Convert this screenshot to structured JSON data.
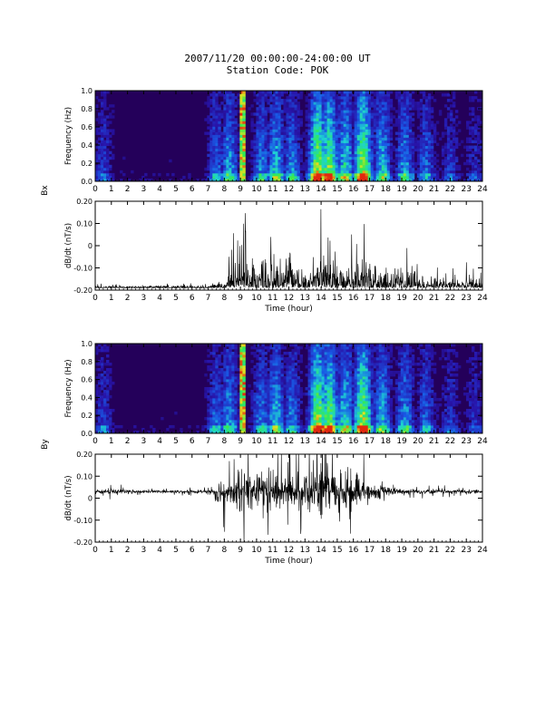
{
  "header": {
    "title": "2007/11/20 00:00:00-24:00:00 UT",
    "subtitle": "Station Code: POK"
  },
  "colors": {
    "spectrogram_low": "#24005a",
    "spectrogram_mid_blue": "#1a3cd6",
    "spectrogram_cyan": "#1fd6c8",
    "spectrogram_green": "#2ff04a",
    "spectrogram_yellow": "#e8e020",
    "spectrogram_red": "#e03010",
    "trace": "#000000"
  },
  "chart_data": [
    {
      "type": "heatmap",
      "component": "Bx",
      "ylabel": "Frequency (Hz)",
      "xlabel": "",
      "xlim": [
        0,
        24
      ],
      "ylim": [
        0.0,
        1.0
      ],
      "x_ticks": [
        "0",
        "1",
        "2",
        "3",
        "4",
        "5",
        "6",
        "7",
        "8",
        "9",
        "10",
        "11",
        "12",
        "13",
        "14",
        "15",
        "16",
        "17",
        "18",
        "19",
        "20",
        "21",
        "22",
        "23",
        "24"
      ],
      "y_ticks": [
        "0.0",
        "0.2",
        "0.4",
        "0.6",
        "0.8",
        "1.0"
      ],
      "activity": [
        {
          "hour": 0.5,
          "level": 0.35
        },
        {
          "hour": 7.5,
          "level": 0.45
        },
        {
          "hour": 8.3,
          "level": 0.55
        },
        {
          "hour": 9.1,
          "level": 1.0
        },
        {
          "hour": 10.3,
          "level": 0.5
        },
        {
          "hour": 11.2,
          "level": 0.6
        },
        {
          "hour": 12.2,
          "level": 0.5
        },
        {
          "hour": 13.8,
          "level": 0.85
        },
        {
          "hour": 14.5,
          "level": 0.8
        },
        {
          "hour": 15.5,
          "level": 0.65
        },
        {
          "hour": 16.6,
          "level": 0.85
        },
        {
          "hour": 17.8,
          "level": 0.6
        },
        {
          "hour": 19.2,
          "level": 0.55
        },
        {
          "hour": 20.5,
          "level": 0.45
        },
        {
          "hour": 22.0,
          "level": 0.35
        },
        {
          "hour": 23.5,
          "level": 0.3
        }
      ]
    },
    {
      "type": "line",
      "component": "Bx",
      "side_label": "Bx",
      "ylabel": "dB/dt (nT/s)",
      "xlabel": "Time (hour)",
      "xlim": [
        0,
        24
      ],
      "ylim": [
        -0.2,
        0.2
      ],
      "x_ticks": [
        "0",
        "1",
        "2",
        "3",
        "4",
        "5",
        "6",
        "7",
        "8",
        "9",
        "10",
        "11",
        "12",
        "13",
        "14",
        "15",
        "16",
        "17",
        "18",
        "19",
        "20",
        "21",
        "22",
        "23",
        "24"
      ],
      "y_ticks": [
        "-0.20",
        "-0.10",
        "0",
        "0.10",
        "0.20"
      ],
      "baseline": -0.19,
      "envelope": [
        {
          "hour": 0,
          "amp": 0.02
        },
        {
          "hour": 7,
          "amp": 0.03
        },
        {
          "hour": 8,
          "amp": 0.09
        },
        {
          "hour": 9,
          "amp": 0.38
        },
        {
          "hour": 10,
          "amp": 0.28
        },
        {
          "hour": 11,
          "amp": 0.35
        },
        {
          "hour": 12,
          "amp": 0.3
        },
        {
          "hour": 13,
          "amp": 0.25
        },
        {
          "hour": 14,
          "amp": 0.38
        },
        {
          "hour": 15,
          "amp": 0.35
        },
        {
          "hour": 16,
          "amp": 0.32
        },
        {
          "hour": 17,
          "amp": 0.3
        },
        {
          "hour": 18,
          "amp": 0.22
        },
        {
          "hour": 19,
          "amp": 0.2
        },
        {
          "hour": 20,
          "amp": 0.16
        },
        {
          "hour": 21,
          "amp": 0.13
        },
        {
          "hour": 22,
          "amp": 0.12
        },
        {
          "hour": 23,
          "amp": 0.12
        },
        {
          "hour": 24,
          "amp": 0.1
        }
      ]
    },
    {
      "type": "heatmap",
      "component": "By",
      "ylabel": "Frequency (Hz)",
      "xlabel": "",
      "xlim": [
        0,
        24
      ],
      "ylim": [
        0.0,
        1.0
      ],
      "x_ticks": [
        "0",
        "1",
        "2",
        "3",
        "4",
        "5",
        "6",
        "7",
        "8",
        "9",
        "10",
        "11",
        "12",
        "13",
        "14",
        "15",
        "16",
        "17",
        "18",
        "19",
        "20",
        "21",
        "22",
        "23",
        "24"
      ],
      "y_ticks": [
        "0.0",
        "0.2",
        "0.4",
        "0.6",
        "0.8",
        "1.0"
      ],
      "activity": [
        {
          "hour": 0.5,
          "level": 0.35
        },
        {
          "hour": 7.5,
          "level": 0.45
        },
        {
          "hour": 8.3,
          "level": 0.55
        },
        {
          "hour": 9.1,
          "level": 1.0
        },
        {
          "hour": 10.3,
          "level": 0.5
        },
        {
          "hour": 11.2,
          "level": 0.6
        },
        {
          "hour": 12.2,
          "level": 0.5
        },
        {
          "hour": 13.8,
          "level": 0.85
        },
        {
          "hour": 14.5,
          "level": 0.8
        },
        {
          "hour": 15.5,
          "level": 0.65
        },
        {
          "hour": 16.6,
          "level": 0.85
        },
        {
          "hour": 17.8,
          "level": 0.6
        },
        {
          "hour": 19.2,
          "level": 0.55
        },
        {
          "hour": 20.5,
          "level": 0.45
        },
        {
          "hour": 22.0,
          "level": 0.35
        },
        {
          "hour": 23.5,
          "level": 0.3
        }
      ]
    },
    {
      "type": "line",
      "component": "By",
      "side_label": "By",
      "ylabel": "dB/dt (nT/s)",
      "xlabel": "Time (hour)",
      "xlim": [
        0,
        24
      ],
      "ylim": [
        -0.2,
        0.2
      ],
      "x_ticks": [
        "0",
        "1",
        "2",
        "3",
        "4",
        "5",
        "6",
        "7",
        "8",
        "9",
        "10",
        "11",
        "12",
        "13",
        "14",
        "15",
        "16",
        "17",
        "18",
        "19",
        "20",
        "21",
        "22",
        "23",
        "24"
      ],
      "y_ticks": [
        "-0.20",
        "-0.10",
        "0",
        "0.10",
        "0.20"
      ],
      "baseline": 0.03,
      "envelope": [
        {
          "hour": 0,
          "amp": 0.02
        },
        {
          "hour": 1.4,
          "amp": 0.05
        },
        {
          "hour": 2,
          "amp": 0.015
        },
        {
          "hour": 7,
          "amp": 0.02
        },
        {
          "hour": 7.5,
          "amp": 0.08
        },
        {
          "hour": 8,
          "amp": 0.2
        },
        {
          "hour": 8.5,
          "amp": 0.12
        },
        {
          "hour": 9,
          "amp": 0.3
        },
        {
          "hour": 10,
          "amp": 0.2
        },
        {
          "hour": 11,
          "amp": 0.25
        },
        {
          "hour": 12,
          "amp": 0.2
        },
        {
          "hour": 13,
          "amp": 0.22
        },
        {
          "hour": 14,
          "amp": 0.3
        },
        {
          "hour": 15,
          "amp": 0.3
        },
        {
          "hour": 16,
          "amp": 0.28
        },
        {
          "hour": 17,
          "amp": 0.12
        },
        {
          "hour": 18,
          "amp": 0.06
        },
        {
          "hour": 19,
          "amp": 0.04
        },
        {
          "hour": 21,
          "amp": 0.03
        },
        {
          "hour": 23,
          "amp": 0.025
        },
        {
          "hour": 24,
          "amp": 0.02
        }
      ]
    }
  ]
}
